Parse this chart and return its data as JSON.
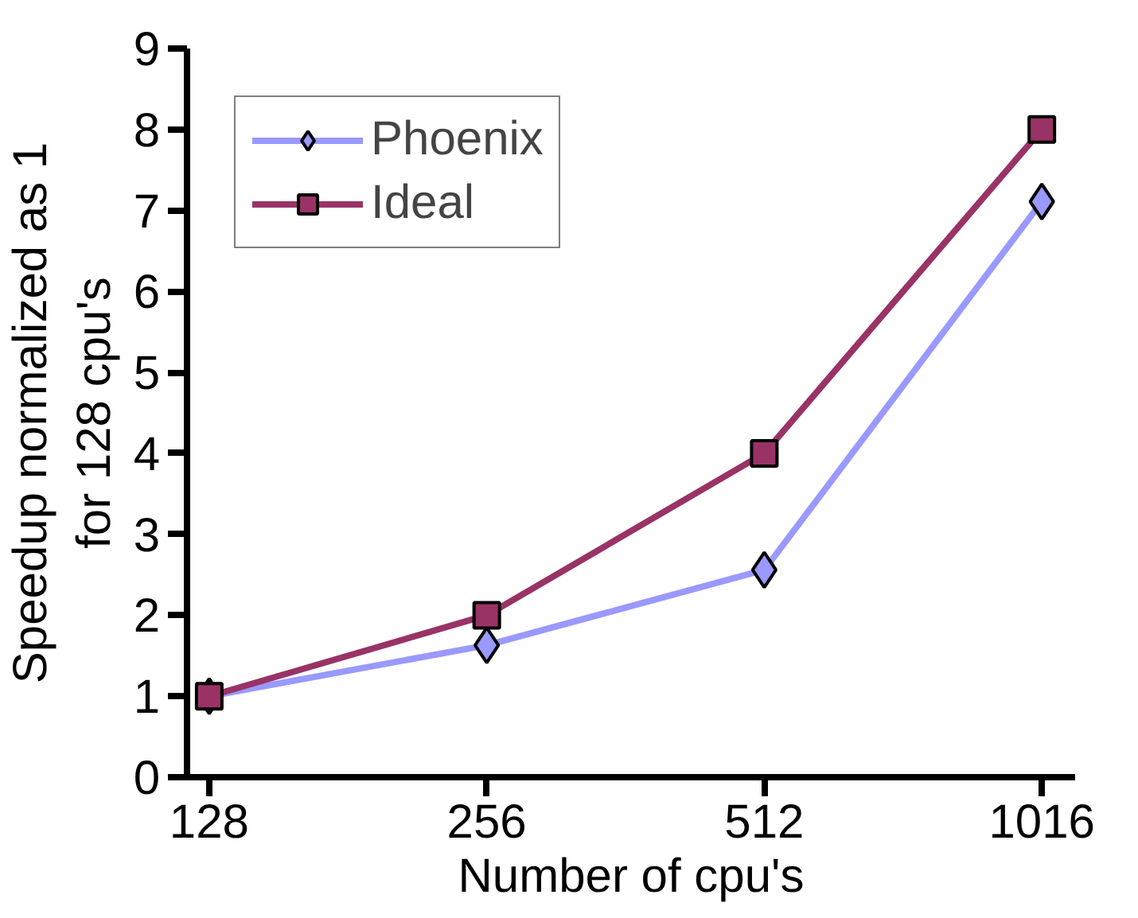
{
  "chart_data": {
    "type": "line",
    "xlabel": "Number of cpu's",
    "ylabel": "Speedup normalized as 1\nfor 128 cpu's",
    "categories": [
      "128",
      "256",
      "512",
      "1016"
    ],
    "series": [
      {
        "name": "Phoenix",
        "color": "#9999ff",
        "values": [
          1,
          1.63,
          2.56,
          7.11
        ],
        "marker": "diamond"
      },
      {
        "name": "Ideal",
        "color": "#993366",
        "values": [
          1,
          2,
          4,
          8
        ],
        "marker": "square"
      }
    ],
    "ylim": [
      0,
      9
    ],
    "yticks": [
      0,
      1,
      2,
      3,
      4,
      5,
      6,
      7,
      8,
      9
    ],
    "grid": false,
    "legend": "top left",
    "line_style": "solid"
  }
}
